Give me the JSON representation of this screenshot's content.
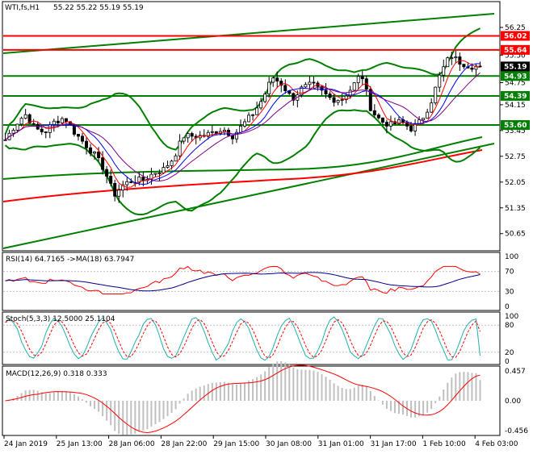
{
  "main": {
    "symbol_label": "WTI,fs,H1",
    "ohlc": "55.22 55.22 55.19 55.19",
    "price_ticks": [
      "56.25",
      "55.50",
      "54.75",
      "54.15",
      "53.45",
      "52.75",
      "52.05",
      "51.35",
      "50.65"
    ],
    "levels": [
      {
        "value": "56.02",
        "color": "#ff0000",
        "kind": "resistance"
      },
      {
        "value": "55.64",
        "color": "#ff0000",
        "kind": "resistance"
      },
      {
        "value": "54.93",
        "color": "#008000",
        "kind": "support"
      },
      {
        "value": "54.39",
        "color": "#008000",
        "kind": "support"
      },
      {
        "value": "53.60",
        "color": "#008000",
        "kind": "support"
      }
    ],
    "current_price": "55.19"
  },
  "rsi": {
    "label": "RSI(14) 64.7165 ->MA(18) 63.7947",
    "ticks": [
      "100",
      "70",
      "30",
      "0"
    ]
  },
  "stoch": {
    "label": "Stoch(5,3,3) 12.5000 25.1104",
    "ticks": [
      "100",
      "80",
      "20",
      "0"
    ]
  },
  "macd": {
    "label": "MACD(12,26,9) 0.318 0.333",
    "ticks": [
      "0.457",
      "0.00",
      "-0.456"
    ]
  },
  "time_axis": [
    "24 Jan 2019",
    "25 Jan 13:00",
    "28 Jan 06:00",
    "28 Jan 22:00",
    "29 Jan 15:00",
    "30 Jan 08:00",
    "31 Jan 01:00",
    "31 Jan 17:00",
    "1 Feb 10:00",
    "4 Feb 03:00"
  ],
  "colors": {
    "candle": "#000000",
    "ma_red": "#ff0000",
    "ma_blue": "#0000ff",
    "ma_purple": "#800080",
    "bollinger": "#008000",
    "trend": "#008000",
    "rsi": "#ff0000",
    "rsi_ma": "#00008b",
    "stoch_main": "#20b2aa",
    "stoch_signal": "#ff0000",
    "macd_hist": "#c0c0c0",
    "macd_signal": "#ff0000"
  },
  "chart_data": [
    {
      "type": "candlestick",
      "title": "WTI,fs,H1",
      "ylim": [
        50.5,
        56.9
      ],
      "x": [
        "24 Jan 2019",
        "25 Jan 13:00",
        "28 Jan 06:00",
        "28 Jan 22:00",
        "29 Jan 15:00",
        "30 Jan 08:00",
        "31 Jan 01:00",
        "31 Jan 17:00",
        "1 Feb 10:00",
        "4 Feb 03:00"
      ],
      "close_path": [
        53.2,
        53.6,
        53.9,
        53.5,
        53.4,
        53.7,
        53.8,
        53.4,
        53.1,
        52.8,
        52.4,
        51.7,
        52.0,
        52.1,
        52.1,
        52.3,
        52.4,
        52.7,
        53.3,
        53.3,
        53.3,
        53.4,
        53.5,
        53.3,
        53.6,
        53.9,
        54.3,
        54.9,
        54.7,
        54.3,
        54.6,
        54.7,
        54.5,
        54.3,
        54.3,
        54.6,
        55.0,
        54.0,
        53.7,
        53.6,
        53.7,
        53.5,
        53.7,
        54.2,
        55.0,
        55.5,
        55.3,
        55.2,
        55.19
      ],
      "levels": [
        56.02,
        55.64,
        54.93,
        54.39,
        53.6
      ]
    },
    {
      "type": "line",
      "name": "RSI(14)",
      "ylim": [
        0,
        100
      ],
      "last": 64.7165,
      "ma_last": 63.7947
    },
    {
      "type": "line",
      "name": "Stoch(5,3,3)",
      "ylim": [
        0,
        100
      ],
      "last": 12.5,
      "signal_last": 25.1104
    },
    {
      "type": "bar",
      "name": "MACD(12,26,9)",
      "ylim": [
        -0.456,
        0.457
      ],
      "last": 0.318,
      "signal_last": 0.333
    }
  ]
}
